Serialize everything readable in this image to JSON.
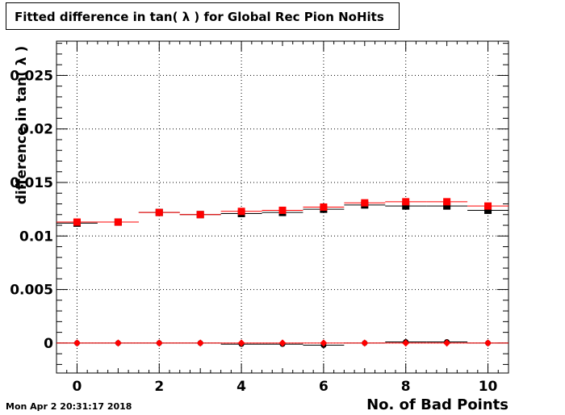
{
  "chart_data": {
    "type": "scatter",
    "title": "Fitted difference in tan( λ ) for Global Rec Pion NoHits",
    "xlabel": "No. of Bad Points",
    "ylabel": "difference in tan( λ )",
    "xlim": [
      -0.5,
      10.5
    ],
    "ylim": [
      -0.0028,
      0.0282
    ],
    "grid": true,
    "x_ticks": [
      "0",
      "2",
      "4",
      "6",
      "8",
      "10"
    ],
    "y_ticks": [
      "0",
      "0.005",
      "0.01",
      "0.015",
      "0.02",
      "0.025"
    ],
    "x": [
      0,
      1,
      2,
      3,
      4,
      5,
      6,
      7,
      8,
      9,
      10
    ],
    "series": [
      {
        "marker": "square",
        "color": "#000000",
        "values": [
          0.0112,
          0.0113,
          0.0122,
          0.012,
          0.0121,
          0.0122,
          0.0125,
          0.0129,
          0.0128,
          0.0128,
          0.0124
        ]
      },
      {
        "marker": "square",
        "color": "#ff0000",
        "values": [
          0.0113,
          0.0113,
          0.0122,
          0.012,
          0.0123,
          0.0124,
          0.0127,
          0.0131,
          0.0132,
          0.0132,
          0.0128
        ]
      },
      {
        "marker": "circle",
        "color": "#000000",
        "values": [
          0.0,
          0.0,
          0.0,
          0.0,
          -0.0001,
          -0.0001,
          -0.0002,
          0.0,
          0.0001,
          0.0001,
          0.0
        ]
      },
      {
        "marker": "diamond",
        "color": "#ff0000",
        "values": [
          0.0,
          0.0,
          0.0,
          0.0,
          0.0,
          0.0,
          0.0,
          0.0,
          0.0,
          0.0,
          0.0
        ]
      }
    ]
  },
  "footer": {
    "timestamp": "Mon Apr  2 20:31:17 2018"
  }
}
